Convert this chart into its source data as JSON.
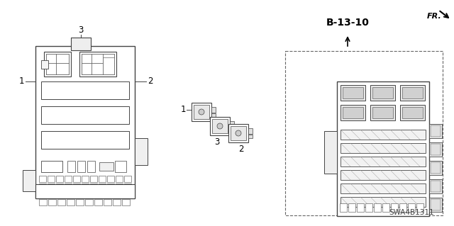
{
  "title": "B-13-10",
  "part_number": "SWA4B1311",
  "background_color": "#ffffff",
  "title_fontsize": 10,
  "part_number_fontsize": 7.5,
  "label_fontsize": 8.5
}
